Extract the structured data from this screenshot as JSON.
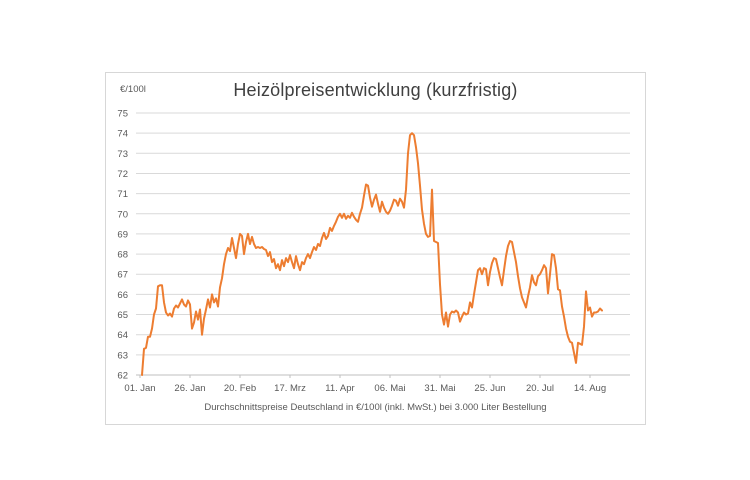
{
  "chart_data": {
    "type": "line",
    "title": "Heizölpreisentwicklung (kurzfristig)",
    "ylabel_unit": "€/100l",
    "caption": "Durchschnittspreise Deutschland in €/100l (inkl. MwSt.) bei 3.000 Liter Bestellung",
    "ylim": [
      62,
      75
    ],
    "y_ticks": [
      62,
      63,
      64,
      65,
      66,
      67,
      68,
      69,
      70,
      71,
      72,
      73,
      74,
      75
    ],
    "x_tick_labels": [
      "01. Jan",
      "26. Jan",
      "20. Feb",
      "17. Mrz",
      "11. Apr",
      "06. Mai",
      "31. Mai",
      "25. Jun",
      "20. Jul",
      "14. Aug"
    ],
    "x_tick_days": [
      0,
      25,
      50,
      75,
      100,
      125,
      150,
      175,
      200,
      225
    ],
    "x_day_range": [
      0,
      245
    ],
    "grid": true,
    "legend": "none",
    "colors": {
      "line": "#ED7D31",
      "grid": "#D9D9D9",
      "axis": "#BFBFBF",
      "tick_label": "#595959",
      "title": "#404040",
      "border": "#D7D7D7"
    },
    "series": [
      {
        "name": "Heizölpreis",
        "color": "#ED7D31",
        "points": [
          [
            1,
            62.0
          ],
          [
            2,
            63.3
          ],
          [
            3,
            63.35
          ],
          [
            4,
            63.9
          ],
          [
            5,
            63.9
          ],
          [
            6,
            64.3
          ],
          [
            7,
            65.0
          ],
          [
            8,
            65.3
          ],
          [
            9,
            66.4
          ],
          [
            10,
            66.45
          ],
          [
            11,
            66.45
          ],
          [
            12,
            65.6
          ],
          [
            13,
            65.1
          ],
          [
            14,
            64.95
          ],
          [
            15,
            65.05
          ],
          [
            16,
            64.9
          ],
          [
            17,
            65.3
          ],
          [
            18,
            65.45
          ],
          [
            19,
            65.35
          ],
          [
            20,
            65.55
          ],
          [
            21,
            65.75
          ],
          [
            22,
            65.5
          ],
          [
            23,
            65.4
          ],
          [
            24,
            65.7
          ],
          [
            25,
            65.5
          ],
          [
            26,
            64.3
          ],
          [
            27,
            64.6
          ],
          [
            28,
            65.15
          ],
          [
            29,
            64.75
          ],
          [
            30,
            65.25
          ],
          [
            31,
            64.0
          ],
          [
            32,
            64.8
          ],
          [
            33,
            65.25
          ],
          [
            34,
            65.75
          ],
          [
            35,
            65.35
          ],
          [
            36,
            66.0
          ],
          [
            37,
            65.6
          ],
          [
            38,
            65.8
          ],
          [
            39,
            65.4
          ],
          [
            40,
            66.35
          ],
          [
            41,
            66.8
          ],
          [
            42,
            67.5
          ],
          [
            43,
            68.0
          ],
          [
            44,
            68.3
          ],
          [
            45,
            68.15
          ],
          [
            46,
            68.8
          ],
          [
            47,
            68.3
          ],
          [
            48,
            67.8
          ],
          [
            49,
            68.5
          ],
          [
            50,
            69.0
          ],
          [
            51,
            68.9
          ],
          [
            52,
            68.0
          ],
          [
            53,
            68.6
          ],
          [
            54,
            69.0
          ],
          [
            55,
            68.5
          ],
          [
            56,
            68.85
          ],
          [
            57,
            68.5
          ],
          [
            58,
            68.3
          ],
          [
            59,
            68.35
          ],
          [
            60,
            68.3
          ],
          [
            61,
            68.35
          ],
          [
            62,
            68.25
          ],
          [
            63,
            68.2
          ],
          [
            64,
            67.9
          ],
          [
            65,
            68.1
          ],
          [
            66,
            67.6
          ],
          [
            67,
            67.75
          ],
          [
            68,
            67.3
          ],
          [
            69,
            67.5
          ],
          [
            70,
            67.2
          ],
          [
            71,
            67.7
          ],
          [
            72,
            67.4
          ],
          [
            73,
            67.8
          ],
          [
            74,
            67.6
          ],
          [
            75,
            67.95
          ],
          [
            76,
            67.6
          ],
          [
            77,
            67.3
          ],
          [
            78,
            67.9
          ],
          [
            79,
            67.5
          ],
          [
            80,
            67.2
          ],
          [
            81,
            67.6
          ],
          [
            82,
            67.5
          ],
          [
            83,
            67.8
          ],
          [
            84,
            68.0
          ],
          [
            85,
            67.8
          ],
          [
            86,
            68.1
          ],
          [
            87,
            68.35
          ],
          [
            88,
            68.2
          ],
          [
            89,
            68.5
          ],
          [
            90,
            68.4
          ],
          [
            91,
            68.8
          ],
          [
            92,
            69.05
          ],
          [
            93,
            68.75
          ],
          [
            94,
            68.9
          ],
          [
            95,
            69.3
          ],
          [
            96,
            69.15
          ],
          [
            97,
            69.4
          ],
          [
            98,
            69.6
          ],
          [
            99,
            69.85
          ],
          [
            100,
            70.0
          ],
          [
            101,
            69.8
          ],
          [
            102,
            70.0
          ],
          [
            103,
            69.75
          ],
          [
            104,
            69.9
          ],
          [
            105,
            69.8
          ],
          [
            106,
            70.05
          ],
          [
            107,
            69.85
          ],
          [
            108,
            69.7
          ],
          [
            109,
            69.6
          ],
          [
            110,
            70.0
          ],
          [
            111,
            70.3
          ],
          [
            112,
            70.9
          ],
          [
            113,
            71.45
          ],
          [
            114,
            71.4
          ],
          [
            115,
            70.8
          ],
          [
            116,
            70.35
          ],
          [
            117,
            70.7
          ],
          [
            118,
            70.95
          ],
          [
            119,
            70.5
          ],
          [
            120,
            70.1
          ],
          [
            121,
            70.6
          ],
          [
            122,
            70.3
          ],
          [
            123,
            70.1
          ],
          [
            124,
            70.0
          ],
          [
            125,
            70.15
          ],
          [
            126,
            70.4
          ],
          [
            127,
            70.7
          ],
          [
            128,
            70.65
          ],
          [
            129,
            70.4
          ],
          [
            130,
            70.75
          ],
          [
            131,
            70.6
          ],
          [
            132,
            70.3
          ],
          [
            133,
            71.2
          ],
          [
            134,
            73.0
          ],
          [
            135,
            73.9
          ],
          [
            136,
            74.0
          ],
          [
            137,
            73.9
          ],
          [
            138,
            73.3
          ],
          [
            139,
            72.5
          ],
          [
            140,
            71.4
          ],
          [
            141,
            70.2
          ],
          [
            142,
            69.5
          ],
          [
            143,
            69.0
          ],
          [
            144,
            68.85
          ],
          [
            145,
            68.9
          ],
          [
            146,
            71.2
          ],
          [
            147,
            68.65
          ],
          [
            148,
            68.6
          ],
          [
            149,
            68.55
          ],
          [
            150,
            66.5
          ],
          [
            151,
            65.0
          ],
          [
            152,
            64.5
          ],
          [
            153,
            65.1
          ],
          [
            154,
            64.4
          ],
          [
            155,
            65.0
          ],
          [
            156,
            65.15
          ],
          [
            157,
            65.1
          ],
          [
            158,
            65.2
          ],
          [
            159,
            65.1
          ],
          [
            160,
            64.65
          ],
          [
            161,
            64.9
          ],
          [
            162,
            65.1
          ],
          [
            163,
            65.0
          ],
          [
            164,
            65.05
          ],
          [
            165,
            65.6
          ],
          [
            166,
            65.35
          ],
          [
            167,
            66.0
          ],
          [
            168,
            66.6
          ],
          [
            169,
            67.2
          ],
          [
            170,
            67.3
          ],
          [
            171,
            67.0
          ],
          [
            172,
            67.3
          ],
          [
            173,
            67.25
          ],
          [
            174,
            66.45
          ],
          [
            175,
            67.1
          ],
          [
            176,
            67.55
          ],
          [
            177,
            67.8
          ],
          [
            178,
            67.75
          ],
          [
            179,
            67.3
          ],
          [
            180,
            66.85
          ],
          [
            181,
            66.45
          ],
          [
            182,
            67.2
          ],
          [
            183,
            67.9
          ],
          [
            184,
            68.4
          ],
          [
            185,
            68.65
          ],
          [
            186,
            68.6
          ],
          [
            187,
            68.1
          ],
          [
            188,
            67.6
          ],
          [
            189,
            66.9
          ],
          [
            190,
            66.3
          ],
          [
            191,
            65.85
          ],
          [
            192,
            65.6
          ],
          [
            193,
            65.35
          ],
          [
            194,
            65.9
          ],
          [
            195,
            66.35
          ],
          [
            196,
            66.95
          ],
          [
            197,
            66.6
          ],
          [
            198,
            66.45
          ],
          [
            199,
            66.9
          ],
          [
            200,
            67.0
          ],
          [
            201,
            67.2
          ],
          [
            202,
            67.45
          ],
          [
            203,
            67.3
          ],
          [
            204,
            66.05
          ],
          [
            205,
            67.0
          ],
          [
            206,
            68.0
          ],
          [
            207,
            67.95
          ],
          [
            208,
            67.3
          ],
          [
            209,
            66.25
          ],
          [
            210,
            66.2
          ],
          [
            211,
            65.4
          ],
          [
            212,
            64.9
          ],
          [
            213,
            64.3
          ],
          [
            214,
            63.9
          ],
          [
            215,
            63.65
          ],
          [
            216,
            63.6
          ],
          [
            217,
            63.1
          ],
          [
            218,
            62.6
          ],
          [
            219,
            63.6
          ],
          [
            220,
            63.55
          ],
          [
            221,
            63.5
          ],
          [
            222,
            64.4
          ],
          [
            223,
            66.15
          ],
          [
            224,
            65.2
          ],
          [
            225,
            65.35
          ],
          [
            226,
            64.9
          ],
          [
            227,
            65.1
          ],
          [
            228,
            65.1
          ],
          [
            229,
            65.15
          ],
          [
            230,
            65.3
          ],
          [
            231,
            65.2
          ]
        ]
      }
    ]
  }
}
